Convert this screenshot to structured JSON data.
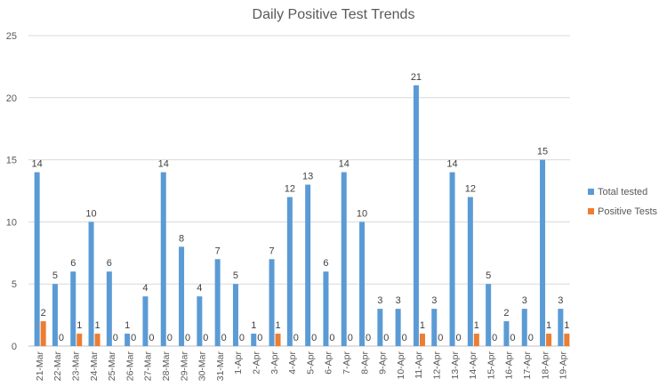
{
  "chart_data": {
    "type": "bar",
    "title": "Daily Positive Test Trends",
    "xlabel": "",
    "ylabel": "",
    "ylim": [
      0,
      25
    ],
    "yticks": [
      0,
      5,
      10,
      15,
      20,
      25
    ],
    "grid": true,
    "legend_position": "right",
    "categories": [
      "21-Mar",
      "22-Mar",
      "23-Mar",
      "24-Mar",
      "25-Mar",
      "26-Mar",
      "27-Mar",
      "28-Mar",
      "29-Mar",
      "30-Mar",
      "31-Mar",
      "1-Apr",
      "2-Apr",
      "3-Apr",
      "4-Apr",
      "5-Apr",
      "6-Apr",
      "7-Apr",
      "8-Apr",
      "9-Apr",
      "10-Apr",
      "11-Apr",
      "12-Apr",
      "13-Apr",
      "14-Apr",
      "15-Apr",
      "16-Apr",
      "17-Apr",
      "18-Apr",
      "19-Apr"
    ],
    "series": [
      {
        "name": "Total tested",
        "color": "#5b9bd5",
        "values": [
          14,
          5,
          6,
          10,
          6,
          1,
          4,
          14,
          8,
          4,
          7,
          5,
          1,
          7,
          12,
          13,
          6,
          14,
          10,
          3,
          3,
          21,
          3,
          14,
          12,
          5,
          2,
          3,
          15,
          3
        ]
      },
      {
        "name": "Positive Tests",
        "color": "#ed7d31",
        "values": [
          2,
          0,
          1,
          1,
          0,
          0,
          0,
          0,
          0,
          0,
          0,
          0,
          0,
          1,
          0,
          0,
          0,
          0,
          0,
          0,
          0,
          1,
          0,
          0,
          1,
          0,
          0,
          0,
          1,
          1
        ]
      }
    ]
  }
}
